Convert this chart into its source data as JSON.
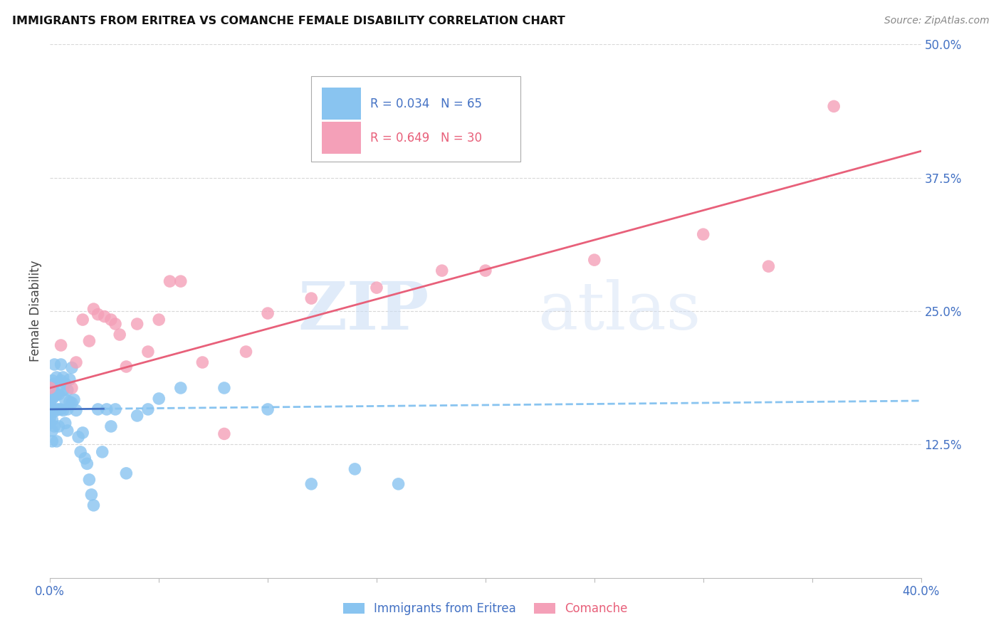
{
  "title": "IMMIGRANTS FROM ERITREA VS COMANCHE FEMALE DISABILITY CORRELATION CHART",
  "source": "Source: ZipAtlas.com",
  "ylabel": "Female Disability",
  "yticks": [
    0.0,
    0.125,
    0.25,
    0.375,
    0.5
  ],
  "xlim": [
    0.0,
    0.4
  ],
  "ylim": [
    0.0,
    0.5
  ],
  "series1": {
    "name": "Immigrants from Eritrea",
    "R": 0.034,
    "N": 65,
    "color": "#89C4F0",
    "line_color": "#4472C4",
    "x": [
      0.0,
      0.0,
      0.0,
      0.0,
      0.0,
      0.001,
      0.001,
      0.001,
      0.001,
      0.001,
      0.001,
      0.001,
      0.002,
      0.002,
      0.002,
      0.002,
      0.002,
      0.003,
      0.003,
      0.003,
      0.003,
      0.004,
      0.004,
      0.004,
      0.005,
      0.005,
      0.005,
      0.006,
      0.006,
      0.006,
      0.007,
      0.007,
      0.007,
      0.008,
      0.008,
      0.008,
      0.009,
      0.009,
      0.01,
      0.01,
      0.011,
      0.012,
      0.013,
      0.014,
      0.015,
      0.016,
      0.017,
      0.018,
      0.019,
      0.02,
      0.022,
      0.024,
      0.026,
      0.028,
      0.03,
      0.035,
      0.04,
      0.045,
      0.05,
      0.06,
      0.08,
      0.1,
      0.12,
      0.14,
      0.16
    ],
    "y": [
      0.155,
      0.16,
      0.165,
      0.15,
      0.145,
      0.185,
      0.178,
      0.168,
      0.158,
      0.148,
      0.138,
      0.128,
      0.2,
      0.182,
      0.17,
      0.156,
      0.142,
      0.188,
      0.172,
      0.158,
      0.128,
      0.172,
      0.158,
      0.142,
      0.2,
      0.185,
      0.158,
      0.188,
      0.176,
      0.157,
      0.182,
      0.167,
      0.145,
      0.176,
      0.158,
      0.138,
      0.186,
      0.165,
      0.197,
      0.164,
      0.167,
      0.157,
      0.132,
      0.118,
      0.136,
      0.112,
      0.107,
      0.092,
      0.078,
      0.068,
      0.158,
      0.118,
      0.158,
      0.142,
      0.158,
      0.098,
      0.152,
      0.158,
      0.168,
      0.178,
      0.178,
      0.158,
      0.088,
      0.102,
      0.088
    ]
  },
  "series2": {
    "name": "Comanche",
    "R": 0.649,
    "N": 30,
    "color": "#F4A0B8",
    "line_color": "#E8607A",
    "x": [
      0.0,
      0.005,
      0.01,
      0.012,
      0.015,
      0.018,
      0.02,
      0.022,
      0.025,
      0.028,
      0.03,
      0.032,
      0.035,
      0.04,
      0.045,
      0.05,
      0.055,
      0.06,
      0.07,
      0.08,
      0.09,
      0.1,
      0.12,
      0.15,
      0.18,
      0.2,
      0.25,
      0.3,
      0.33,
      0.36
    ],
    "y": [
      0.178,
      0.218,
      0.178,
      0.202,
      0.242,
      0.222,
      0.252,
      0.247,
      0.245,
      0.242,
      0.238,
      0.228,
      0.198,
      0.238,
      0.212,
      0.242,
      0.278,
      0.278,
      0.202,
      0.135,
      0.212,
      0.248,
      0.262,
      0.272,
      0.288,
      0.288,
      0.298,
      0.322,
      0.292,
      0.442
    ]
  },
  "watermark_zip": "ZIP",
  "watermark_atlas": "atlas",
  "background_color": "#ffffff",
  "grid_color": "#d8d8d8"
}
